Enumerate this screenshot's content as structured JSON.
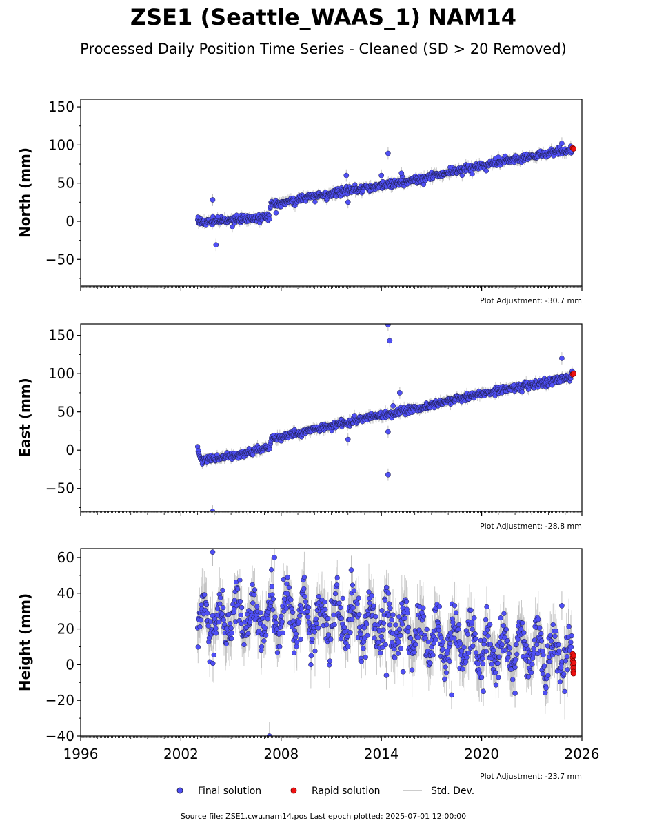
{
  "title": "ZSE1 (Seattle_WAAS_1) NAM14",
  "subtitle": "Processed Daily Position Time Series - Cleaned (SD > 20 Removed)",
  "footer": "Source file: ZSE1.cwu.nam14.pos  Last epoch plotted: 2025-07-01 12:00:00",
  "colors": {
    "final": "#4f4ff5",
    "rapid": "#ee1111",
    "std": "#bbbbbb",
    "edge": "#1a1a40"
  },
  "legend": {
    "final": "Final solution",
    "rapid": "Rapid solution",
    "std": "Std. Dev."
  },
  "chart_data": [
    {
      "type": "scatter",
      "ylabel": "North (mm)",
      "xlim": [
        1996,
        2026
      ],
      "ylim": [
        -85,
        160
      ],
      "yticks": [
        -50,
        0,
        50,
        100,
        150
      ],
      "grid": false,
      "adjustment": "Plot Adjustment: -30.7 mm",
      "final_trend": [
        {
          "x": 2003.0,
          "y": -1
        },
        {
          "x": 2005.0,
          "y": 1
        },
        {
          "x": 2007.3,
          "y": 6
        },
        {
          "x": 2007.4,
          "y": 22
        },
        {
          "x": 2010.0,
          "y": 33
        },
        {
          "x": 2012.0,
          "y": 40
        },
        {
          "x": 2014.0,
          "y": 46
        },
        {
          "x": 2016.0,
          "y": 54
        },
        {
          "x": 2018.0,
          "y": 64
        },
        {
          "x": 2020.0,
          "y": 73
        },
        {
          "x": 2022.0,
          "y": 81
        },
        {
          "x": 2024.0,
          "y": 89
        },
        {
          "x": 2025.4,
          "y": 95
        }
      ],
      "scatter_sd": 2.5,
      "outliers": [
        {
          "x": 2003.9,
          "y": 28
        },
        {
          "x": 2004.1,
          "y": -31
        },
        {
          "x": 2007.7,
          "y": 11
        },
        {
          "x": 2011.9,
          "y": 60
        },
        {
          "x": 2012.0,
          "y": 25
        },
        {
          "x": 2014.4,
          "y": 89
        },
        {
          "x": 2014.0,
          "y": 60
        },
        {
          "x": 2015.2,
          "y": 63
        },
        {
          "x": 2021.0,
          "y": 84
        },
        {
          "x": 2024.8,
          "y": 102
        }
      ],
      "rapid": [
        {
          "x": 2025.45,
          "y": 96
        },
        {
          "x": 2025.5,
          "y": 95
        }
      ]
    },
    {
      "type": "scatter",
      "ylabel": "East (mm)",
      "xlim": [
        1996,
        2026
      ],
      "ylim": [
        -80,
        165
      ],
      "yticks": [
        -50,
        0,
        50,
        100,
        150
      ],
      "grid": false,
      "adjustment": "Plot Adjustment: -28.8 mm",
      "final_trend": [
        {
          "x": 2003.0,
          "y": 2
        },
        {
          "x": 2003.2,
          "y": -13
        },
        {
          "x": 2005.0,
          "y": -7
        },
        {
          "x": 2007.3,
          "y": 3
        },
        {
          "x": 2007.4,
          "y": 14
        },
        {
          "x": 2010.0,
          "y": 27
        },
        {
          "x": 2012.0,
          "y": 37
        },
        {
          "x": 2014.0,
          "y": 46
        },
        {
          "x": 2016.0,
          "y": 54
        },
        {
          "x": 2018.0,
          "y": 64
        },
        {
          "x": 2020.0,
          "y": 73
        },
        {
          "x": 2022.0,
          "y": 82
        },
        {
          "x": 2024.0,
          "y": 89
        },
        {
          "x": 2025.5,
          "y": 98
        }
      ],
      "scatter_sd": 2.5,
      "outliers": [
        {
          "x": 2003.9,
          "y": -80
        },
        {
          "x": 2012.0,
          "y": 14
        },
        {
          "x": 2014.4,
          "y": 164
        },
        {
          "x": 2014.5,
          "y": 143
        },
        {
          "x": 2014.4,
          "y": 24
        },
        {
          "x": 2014.4,
          "y": -32
        },
        {
          "x": 2015.1,
          "y": 75
        },
        {
          "x": 2014.7,
          "y": 58
        },
        {
          "x": 2024.8,
          "y": 120
        }
      ],
      "rapid": [
        {
          "x": 2025.45,
          "y": 99
        },
        {
          "x": 2025.5,
          "y": 100
        }
      ]
    },
    {
      "type": "scatter",
      "ylabel": "Height (mm)",
      "xlim": [
        1996,
        2026
      ],
      "ylim": [
        -40,
        65
      ],
      "yticks": [
        -40,
        -20,
        0,
        20,
        40,
        60
      ],
      "xticks": [
        1996,
        2002,
        2008,
        2014,
        2020,
        2026
      ],
      "grid": false,
      "adjustment": "Plot Adjustment: -23.7 mm",
      "final_trend": [
        {
          "x": 2003.0,
          "y": 25
        },
        {
          "x": 2008.0,
          "y": 28
        },
        {
          "x": 2012.0,
          "y": 25
        },
        {
          "x": 2015.0,
          "y": 20
        },
        {
          "x": 2018.0,
          "y": 13
        },
        {
          "x": 2021.0,
          "y": 9
        },
        {
          "x": 2025.4,
          "y": 5
        }
      ],
      "seasonal_amplitude": 11,
      "scatter_sd": 6,
      "outliers": [
        {
          "x": 2003.9,
          "y": 63
        },
        {
          "x": 2007.6,
          "y": 60
        },
        {
          "x": 2007.3,
          "y": -40
        },
        {
          "x": 2009.8,
          "y": 5
        },
        {
          "x": 2012.2,
          "y": 53
        },
        {
          "x": 2014.3,
          "y": -6
        },
        {
          "x": 2015.3,
          "y": -4
        },
        {
          "x": 2018.2,
          "y": -17
        },
        {
          "x": 2020.1,
          "y": -15
        },
        {
          "x": 2022.0,
          "y": -16
        },
        {
          "x": 2024.8,
          "y": 33
        }
      ],
      "rapid": [
        {
          "x": 2025.45,
          "y": 6
        },
        {
          "x": 2025.45,
          "y": 4
        },
        {
          "x": 2025.46,
          "y": 2
        },
        {
          "x": 2025.47,
          "y": 0
        },
        {
          "x": 2025.48,
          "y": -2
        },
        {
          "x": 2025.49,
          "y": -4
        },
        {
          "x": 2025.5,
          "y": -5
        },
        {
          "x": 2025.5,
          "y": 5
        },
        {
          "x": 2025.51,
          "y": 1
        }
      ]
    }
  ]
}
